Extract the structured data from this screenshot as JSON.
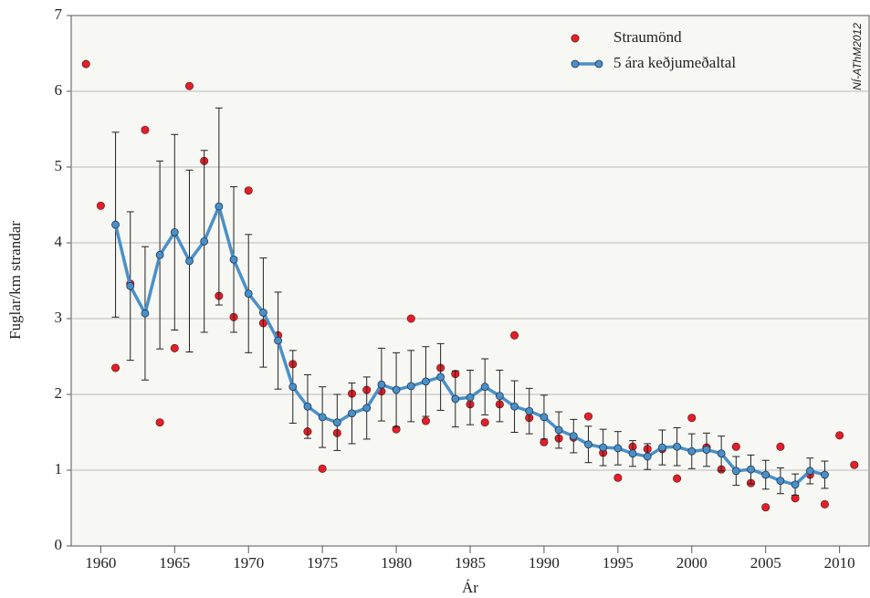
{
  "chart_data": {
    "type": "line",
    "watermark": "NÍ-AThM2012",
    "xlabel": "Ár",
    "ylabel": "Fuglar/km strandar",
    "xlim": [
      1958,
      2012
    ],
    "xticks": [
      1960,
      1965,
      1970,
      1975,
      1980,
      1985,
      1990,
      1995,
      2000,
      2005,
      2010
    ],
    "ylim": [
      0,
      7
    ],
    "yticks": [
      0,
      1,
      2,
      3,
      4,
      5,
      6,
      7
    ],
    "grid": true,
    "legend": "upper right",
    "series": [
      {
        "name": "Straumönd",
        "type": "scatter",
        "color": "#e0202a",
        "x": [
          1959,
          1960,
          1961,
          1962,
          1963,
          1964,
          1965,
          1966,
          1967,
          1968,
          1969,
          1970,
          1971,
          1972,
          1973,
          1974,
          1975,
          1976,
          1977,
          1978,
          1979,
          1980,
          1981,
          1982,
          1983,
          1984,
          1985,
          1986,
          1987,
          1988,
          1989,
          1990,
          1991,
          1992,
          1993,
          1994,
          1995,
          1996,
          1997,
          1998,
          1999,
          2000,
          2001,
          2002,
          2003,
          2004,
          2005,
          2006,
          2007,
          2008,
          2009,
          2010,
          2011
        ],
        "values": [
          6.36,
          4.49,
          2.35,
          3.46,
          5.49,
          1.63,
          2.61,
          6.07,
          5.08,
          3.3,
          3.02,
          4.69,
          2.94,
          2.78,
          2.4,
          1.51,
          1.02,
          1.49,
          2.01,
          2.06,
          2.04,
          1.54,
          3.0,
          1.65,
          2.35,
          2.27,
          1.87,
          1.63,
          1.87,
          2.78,
          1.69,
          1.37,
          1.42,
          1.43,
          1.71,
          1.23,
          0.9,
          1.31,
          1.28,
          1.28,
          0.89,
          1.69,
          1.3,
          1.01,
          1.31,
          0.83,
          0.51,
          1.31,
          0.63,
          0.94,
          0.55,
          1.46,
          1.07
        ]
      },
      {
        "name": "5 ára keðjumeðaltal",
        "type": "line",
        "color": "#4a90c8",
        "x": [
          1961,
          1962,
          1963,
          1964,
          1965,
          1966,
          1967,
          1968,
          1969,
          1970,
          1971,
          1972,
          1973,
          1974,
          1975,
          1976,
          1977,
          1978,
          1979,
          1980,
          1981,
          1982,
          1983,
          1984,
          1985,
          1986,
          1987,
          1988,
          1989,
          1990,
          1991,
          1992,
          1993,
          1994,
          1995,
          1996,
          1997,
          1998,
          1999,
          2000,
          2001,
          2002,
          2003,
          2004,
          2005,
          2006,
          2007,
          2008,
          2009
        ],
        "values": [
          4.24,
          3.43,
          3.07,
          3.84,
          4.14,
          3.76,
          4.02,
          4.48,
          3.78,
          3.33,
          3.08,
          2.71,
          2.1,
          1.84,
          1.7,
          1.63,
          1.75,
          1.82,
          2.13,
          2.06,
          2.11,
          2.17,
          2.23,
          1.94,
          1.96,
          2.1,
          1.98,
          1.84,
          1.78,
          1.7,
          1.53,
          1.45,
          1.34,
          1.3,
          1.29,
          1.22,
          1.18,
          1.3,
          1.31,
          1.25,
          1.27,
          1.22,
          0.99,
          1.01,
          0.94,
          0.86,
          0.81,
          0.99,
          0.94
        ],
        "errors": [
          1.22,
          0.98,
          0.88,
          1.24,
          1.29,
          1.2,
          1.2,
          1.3,
          0.96,
          0.78,
          0.72,
          0.64,
          0.48,
          0.42,
          0.4,
          0.37,
          0.4,
          0.41,
          0.48,
          0.49,
          0.47,
          0.46,
          0.44,
          0.37,
          0.36,
          0.37,
          0.34,
          0.34,
          0.3,
          0.29,
          0.24,
          0.22,
          0.24,
          0.24,
          0.22,
          0.17,
          0.17,
          0.23,
          0.25,
          0.23,
          0.22,
          0.23,
          0.19,
          0.19,
          0.19,
          0.17,
          0.14,
          0.17,
          0.18
        ]
      }
    ]
  }
}
